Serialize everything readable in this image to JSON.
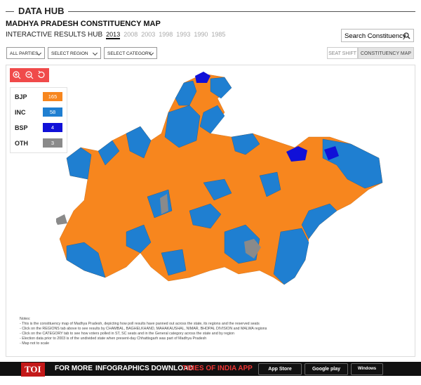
{
  "header": {
    "section": "DATA HUB",
    "title": "MADHYA PRADESH CONSTITUENCY MAP",
    "subtitle": "INTERACTIVE RESULTS HUB",
    "years": [
      "2013",
      "2008",
      "2003",
      "1998",
      "1993",
      "1990",
      "1985"
    ],
    "search": "Search Constituency"
  },
  "filters": [
    "ALL PARTIES",
    "SELECT REGION",
    "SELECT CATEGORY"
  ],
  "tabs": [
    "SEAT SHIFT",
    "CONSTITUENCY MAP"
  ],
  "legend": {
    "items": [
      {
        "party": "BJP",
        "seats": "165",
        "color": "#f7861e"
      },
      {
        "party": "INC",
        "seats": "58",
        "color": "#1f7fd1"
      },
      {
        "party": "BSP",
        "seats": "4",
        "color": "#1010d8"
      },
      {
        "party": "OTH",
        "seats": "3",
        "color": "#8a8a8a"
      }
    ]
  },
  "notes": {
    "heading": "Notes:",
    "lines": [
      "- This is the constituency map of Madhya Pradesh, depicting how poll results have panned out across the state, its regions and the reserved seats",
      "- Click on the REGIONS tab above to see results by CHAMBAL, BAGHELKHAND, MAHAKAUSHAL, NIMAR, BHOPAL DIVISION and MALWA regions",
      "- Click on the CATEGORY tab to see how voters polled in ST, SC seats and in the General category across the state and by region",
      "- Election data prior to 2003 is of the undivided state when present-day Chhattisgarh was part of Madhya Pradesh",
      "- Map not to scale"
    ]
  },
  "footer": {
    "brand": "TOI",
    "lead": "FOR MORE",
    "middle": "INFOGRAPHICS DOWNLOAD",
    "app": "TIMES OF INDIA APP",
    "stores": [
      "App Store",
      "Google play",
      "Windows Phone"
    ]
  }
}
